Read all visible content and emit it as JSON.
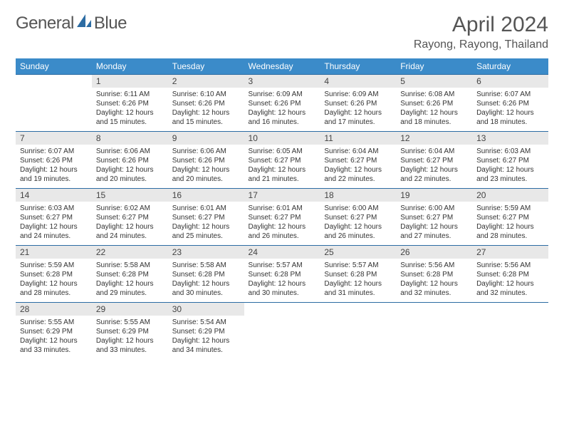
{
  "brand": {
    "word1": "General",
    "word2": "Blue"
  },
  "title": {
    "month": "April 2024",
    "location": "Rayong, Rayong, Thailand"
  },
  "colors": {
    "header_bg": "#3b8bc9",
    "header_text": "#ffffff",
    "daynum_bg": "#e8e8e8",
    "rule": "#2c6ca3",
    "logo_blue": "#2c6ca3"
  },
  "weekdays": [
    "Sunday",
    "Monday",
    "Tuesday",
    "Wednesday",
    "Thursday",
    "Friday",
    "Saturday"
  ],
  "grid": [
    [
      null,
      {
        "n": "1",
        "sr": "6:11 AM",
        "ss": "6:26 PM",
        "dl": "12 hours and 15 minutes."
      },
      {
        "n": "2",
        "sr": "6:10 AM",
        "ss": "6:26 PM",
        "dl": "12 hours and 15 minutes."
      },
      {
        "n": "3",
        "sr": "6:09 AM",
        "ss": "6:26 PM",
        "dl": "12 hours and 16 minutes."
      },
      {
        "n": "4",
        "sr": "6:09 AM",
        "ss": "6:26 PM",
        "dl": "12 hours and 17 minutes."
      },
      {
        "n": "5",
        "sr": "6:08 AM",
        "ss": "6:26 PM",
        "dl": "12 hours and 18 minutes."
      },
      {
        "n": "6",
        "sr": "6:07 AM",
        "ss": "6:26 PM",
        "dl": "12 hours and 18 minutes."
      }
    ],
    [
      {
        "n": "7",
        "sr": "6:07 AM",
        "ss": "6:26 PM",
        "dl": "12 hours and 19 minutes."
      },
      {
        "n": "8",
        "sr": "6:06 AM",
        "ss": "6:26 PM",
        "dl": "12 hours and 20 minutes."
      },
      {
        "n": "9",
        "sr": "6:06 AM",
        "ss": "6:26 PM",
        "dl": "12 hours and 20 minutes."
      },
      {
        "n": "10",
        "sr": "6:05 AM",
        "ss": "6:27 PM",
        "dl": "12 hours and 21 minutes."
      },
      {
        "n": "11",
        "sr": "6:04 AM",
        "ss": "6:27 PM",
        "dl": "12 hours and 22 minutes."
      },
      {
        "n": "12",
        "sr": "6:04 AM",
        "ss": "6:27 PM",
        "dl": "12 hours and 22 minutes."
      },
      {
        "n": "13",
        "sr": "6:03 AM",
        "ss": "6:27 PM",
        "dl": "12 hours and 23 minutes."
      }
    ],
    [
      {
        "n": "14",
        "sr": "6:03 AM",
        "ss": "6:27 PM",
        "dl": "12 hours and 24 minutes."
      },
      {
        "n": "15",
        "sr": "6:02 AM",
        "ss": "6:27 PM",
        "dl": "12 hours and 24 minutes."
      },
      {
        "n": "16",
        "sr": "6:01 AM",
        "ss": "6:27 PM",
        "dl": "12 hours and 25 minutes."
      },
      {
        "n": "17",
        "sr": "6:01 AM",
        "ss": "6:27 PM",
        "dl": "12 hours and 26 minutes."
      },
      {
        "n": "18",
        "sr": "6:00 AM",
        "ss": "6:27 PM",
        "dl": "12 hours and 26 minutes."
      },
      {
        "n": "19",
        "sr": "6:00 AM",
        "ss": "6:27 PM",
        "dl": "12 hours and 27 minutes."
      },
      {
        "n": "20",
        "sr": "5:59 AM",
        "ss": "6:27 PM",
        "dl": "12 hours and 28 minutes."
      }
    ],
    [
      {
        "n": "21",
        "sr": "5:59 AM",
        "ss": "6:28 PM",
        "dl": "12 hours and 28 minutes."
      },
      {
        "n": "22",
        "sr": "5:58 AM",
        "ss": "6:28 PM",
        "dl": "12 hours and 29 minutes."
      },
      {
        "n": "23",
        "sr": "5:58 AM",
        "ss": "6:28 PM",
        "dl": "12 hours and 30 minutes."
      },
      {
        "n": "24",
        "sr": "5:57 AM",
        "ss": "6:28 PM",
        "dl": "12 hours and 30 minutes."
      },
      {
        "n": "25",
        "sr": "5:57 AM",
        "ss": "6:28 PM",
        "dl": "12 hours and 31 minutes."
      },
      {
        "n": "26",
        "sr": "5:56 AM",
        "ss": "6:28 PM",
        "dl": "12 hours and 32 minutes."
      },
      {
        "n": "27",
        "sr": "5:56 AM",
        "ss": "6:28 PM",
        "dl": "12 hours and 32 minutes."
      }
    ],
    [
      {
        "n": "28",
        "sr": "5:55 AM",
        "ss": "6:29 PM",
        "dl": "12 hours and 33 minutes."
      },
      {
        "n": "29",
        "sr": "5:55 AM",
        "ss": "6:29 PM",
        "dl": "12 hours and 33 minutes."
      },
      {
        "n": "30",
        "sr": "5:54 AM",
        "ss": "6:29 PM",
        "dl": "12 hours and 34 minutes."
      },
      null,
      null,
      null,
      null
    ]
  ],
  "labels": {
    "sunrise": "Sunrise:",
    "sunset": "Sunset:",
    "daylight": "Daylight:"
  }
}
